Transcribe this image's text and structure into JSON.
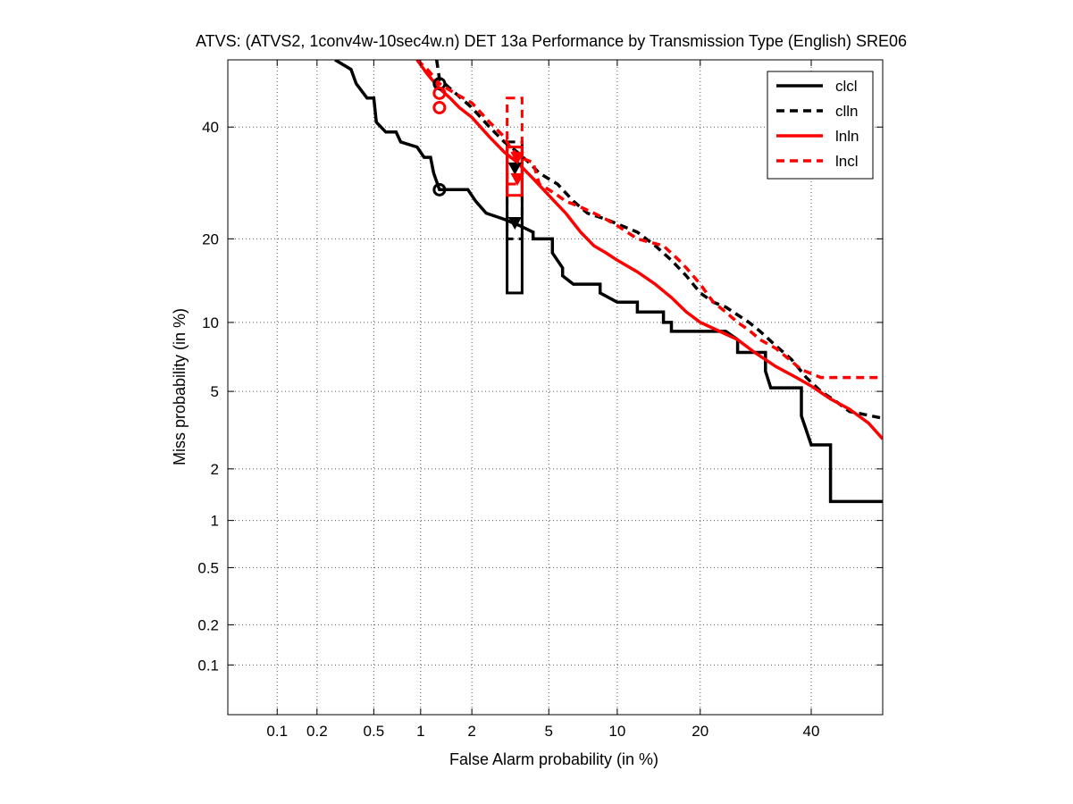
{
  "chart_data": {
    "type": "line",
    "title": "ATVS: (ATVS2, 1conv4w-10sec4w.n) DET 13a Performance by Transmission Type (English) SRE06",
    "xlabel": "False Alarm probability (in %)",
    "ylabel": "Miss probability (in %)",
    "x_scale": "probit",
    "y_scale": "probit",
    "xlim": [
      0.04,
      55
    ],
    "ylim": [
      0.04,
      54
    ],
    "x_ticks": [
      0.1,
      0.2,
      0.5,
      1,
      2,
      5,
      10,
      20,
      40
    ],
    "x_tick_labels": [
      "0.1",
      "0.2",
      "0.5",
      "1",
      "2",
      "5",
      "10",
      "20",
      "40"
    ],
    "y_ticks": [
      0.1,
      0.2,
      0.5,
      1,
      2,
      5,
      10,
      20,
      40
    ],
    "y_tick_labels": [
      "0.1",
      "0.2",
      "0.5",
      "1",
      "2",
      "5",
      "10",
      "20",
      "40"
    ],
    "grid": true,
    "legend_position": "top-right",
    "series": [
      {
        "name": "clcl",
        "color": "#000000",
        "dash": "solid",
        "points": [
          [
            0.27,
            54
          ],
          [
            0.35,
            52
          ],
          [
            0.38,
            49
          ],
          [
            0.45,
            46
          ],
          [
            0.5,
            46
          ],
          [
            0.52,
            41
          ],
          [
            0.6,
            39
          ],
          [
            0.7,
            39
          ],
          [
            0.75,
            37
          ],
          [
            0.95,
            36
          ],
          [
            1.05,
            34
          ],
          [
            1.15,
            34
          ],
          [
            1.2,
            31
          ],
          [
            1.3,
            28
          ],
          [
            1.4,
            28
          ],
          [
            1.6,
            28
          ],
          [
            1.9,
            28
          ],
          [
            2.1,
            26
          ],
          [
            2.4,
            24
          ],
          [
            3.0,
            23
          ],
          [
            3.6,
            22
          ],
          [
            4.2,
            21
          ],
          [
            4.2,
            20
          ],
          [
            5.2,
            20
          ],
          [
            5.2,
            18
          ],
          [
            5.8,
            16
          ],
          [
            5.8,
            15
          ],
          [
            6.5,
            14
          ],
          [
            8.5,
            14
          ],
          [
            8.5,
            13
          ],
          [
            10,
            12
          ],
          [
            12,
            12
          ],
          [
            12,
            11
          ],
          [
            15,
            11
          ],
          [
            15,
            10
          ],
          [
            16,
            10
          ],
          [
            16,
            9.2
          ],
          [
            24,
            9.2
          ],
          [
            26,
            8.5
          ],
          [
            26,
            7.5
          ],
          [
            31,
            7.5
          ],
          [
            31,
            6.2
          ],
          [
            32,
            5.2
          ],
          [
            38,
            5.2
          ],
          [
            38,
            3.8
          ],
          [
            40,
            2.7
          ],
          [
            44,
            2.7
          ],
          [
            44,
            1.3
          ],
          [
            55,
            1.3
          ]
        ]
      },
      {
        "name": "clln",
        "color": "#000000",
        "dash": "dashed",
        "points": [
          [
            1.25,
            54
          ],
          [
            1.3,
            50
          ],
          [
            1.5,
            48
          ],
          [
            2.0,
            44
          ],
          [
            2.5,
            40
          ],
          [
            3.0,
            37
          ],
          [
            3.5,
            35
          ],
          [
            4.0,
            33
          ],
          [
            4.5,
            31
          ],
          [
            5.5,
            29
          ],
          [
            6.5,
            26
          ],
          [
            7.5,
            24
          ],
          [
            9.0,
            23
          ],
          [
            12,
            21
          ],
          [
            14,
            19
          ],
          [
            16,
            17
          ],
          [
            18,
            15
          ],
          [
            20,
            13
          ],
          [
            22,
            12
          ],
          [
            24,
            11.5
          ],
          [
            28,
            10
          ],
          [
            30,
            9.2
          ],
          [
            33,
            8
          ],
          [
            36,
            7
          ],
          [
            39,
            5.8
          ],
          [
            42,
            5
          ],
          [
            45,
            4.5
          ],
          [
            48,
            4.0
          ],
          [
            55,
            3.7
          ]
        ]
      },
      {
        "name": "lnln",
        "color": "#ff0000",
        "dash": "solid",
        "points": [
          [
            0.95,
            54
          ],
          [
            1.1,
            51
          ],
          [
            1.3,
            48
          ],
          [
            1.5,
            46
          ],
          [
            1.7,
            44
          ],
          [
            2.0,
            42
          ],
          [
            2.5,
            38
          ],
          [
            3.0,
            35
          ],
          [
            3.5,
            33
          ],
          [
            4.2,
            30
          ],
          [
            5.0,
            27
          ],
          [
            6.0,
            24
          ],
          [
            7.0,
            21
          ],
          [
            8.0,
            19
          ],
          [
            9.0,
            18
          ],
          [
            10,
            17
          ],
          [
            12,
            15.5
          ],
          [
            14,
            14
          ],
          [
            16,
            12.5
          ],
          [
            18,
            11
          ],
          [
            20,
            10
          ],
          [
            23,
            9.2
          ],
          [
            26,
            8.5
          ],
          [
            29,
            7.5
          ],
          [
            33,
            6.5
          ],
          [
            37,
            5.8
          ],
          [
            40,
            5.3
          ],
          [
            44,
            4.6
          ],
          [
            48,
            4.1
          ],
          [
            52,
            3.5
          ],
          [
            55,
            2.9
          ]
        ]
      },
      {
        "name": "lncl",
        "color": "#ff0000",
        "dash": "dashed",
        "points": [
          [
            0.95,
            54
          ],
          [
            1.1,
            52
          ],
          [
            1.3,
            49
          ],
          [
            1.6,
            47
          ],
          [
            2.0,
            45
          ],
          [
            2.5,
            41
          ],
          [
            3.0,
            38
          ],
          [
            3.2,
            36
          ],
          [
            3.6,
            34
          ],
          [
            4.2,
            33
          ],
          [
            4.5,
            29
          ],
          [
            5.0,
            28
          ],
          [
            5.5,
            27
          ],
          [
            6.0,
            26
          ],
          [
            7.0,
            25
          ],
          [
            8.0,
            24
          ],
          [
            9.0,
            23
          ],
          [
            10,
            22
          ],
          [
            12,
            20
          ],
          [
            15,
            19
          ],
          [
            17,
            17
          ],
          [
            18,
            16
          ],
          [
            20,
            14
          ],
          [
            22,
            12
          ],
          [
            24,
            11
          ],
          [
            26,
            10
          ],
          [
            28,
            9.3
          ],
          [
            30,
            8.5
          ],
          [
            33,
            7.8
          ],
          [
            38,
            6.3
          ],
          [
            42,
            5.8
          ],
          [
            55,
            5.8
          ]
        ]
      }
    ],
    "markers": [
      {
        "series": "clcl",
        "shape": "circle",
        "x": 1.3,
        "y": 28,
        "color": "#000000"
      },
      {
        "series": "clcl",
        "shape": "triangle",
        "x": 3.4,
        "y": 22.5,
        "color": "#000000"
      },
      {
        "series": "clln",
        "shape": "circle",
        "x": 1.3,
        "y": 49,
        "color": "#000000"
      },
      {
        "series": "clln",
        "shape": "triangle",
        "x": 3.4,
        "y": 32,
        "color": "#000000"
      },
      {
        "series": "lnln",
        "shape": "circle",
        "x": 1.3,
        "y": 44,
        "color": "#ff0000"
      },
      {
        "series": "lnln",
        "shape": "triangle",
        "x": 3.5,
        "y": 30,
        "color": "#ff0000"
      },
      {
        "series": "lncl",
        "shape": "circle",
        "x": 1.3,
        "y": 47,
        "color": "#ff0000"
      },
      {
        "series": "lncl",
        "shape": "triangle",
        "x": 3.5,
        "y": 34,
        "color": "#ff0000"
      }
    ],
    "boxes": [
      {
        "series": "clcl",
        "x": [
          3.1,
          3.7
        ],
        "y": [
          13,
          36
        ],
        "color": "#000000",
        "dash": "solid"
      },
      {
        "series": "clln",
        "x": [
          3.1,
          3.7
        ],
        "y": [
          20,
          37
        ],
        "color": "#000000",
        "dash": "dashed"
      },
      {
        "series": "lnln",
        "x": [
          3.1,
          3.7
        ],
        "y": [
          27,
          36
        ],
        "color": "#ff0000",
        "dash": "solid"
      },
      {
        "series": "lncl",
        "x": [
          3.1,
          3.7
        ],
        "y": [
          29,
          46
        ],
        "color": "#ff0000",
        "dash": "dashed"
      }
    ]
  }
}
